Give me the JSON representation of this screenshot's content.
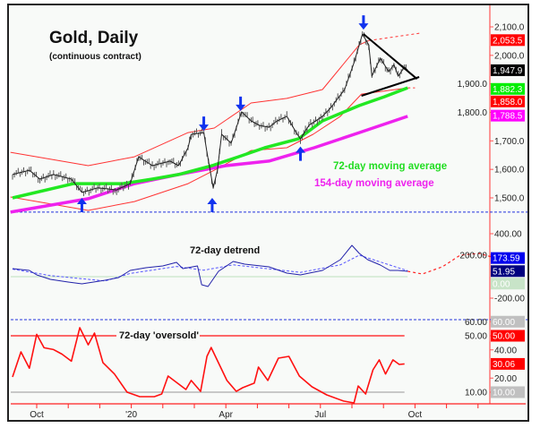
{
  "chart_data": {
    "type": "line",
    "title": "Gold, Daily",
    "subtitle": "(continuous contract)",
    "colors": {
      "price": "#333333",
      "ma72": "#22e822",
      "ma154": "#ee22ee",
      "band": "#ff3333",
      "detrend": "#2222aa",
      "detrend_avg": "#5555ff",
      "projection": "#ff2222",
      "oversold": "#ff1111",
      "arrow": "#1133ee",
      "triangle": "#000000"
    },
    "x_ticks": [
      {
        "date": "2019-10-01",
        "label": "Oct"
      },
      {
        "date": "2019-11-01",
        "label": ""
      },
      {
        "date": "2019-12-01",
        "label": ""
      },
      {
        "date": "2020-01-01",
        "label": "'20"
      },
      {
        "date": "2020-02-01",
        "label": ""
      },
      {
        "date": "2020-03-01",
        "label": ""
      },
      {
        "date": "2020-04-01",
        "label": "Apr"
      },
      {
        "date": "2020-05-01",
        "label": ""
      },
      {
        "date": "2020-06-01",
        "label": ""
      },
      {
        "date": "2020-07-01",
        "label": "Jul"
      },
      {
        "date": "2020-08-01",
        "label": ""
      },
      {
        "date": "2020-09-01",
        "label": ""
      },
      {
        "date": "2020-10-01",
        "label": "Oct"
      },
      {
        "date": "2020-11-01",
        "label": ""
      },
      {
        "date": "2020-12-01",
        "label": ""
      }
    ],
    "price_panel": {
      "ylim": [
        1450,
        2150
      ],
      "y_ticks": [
        "2,100.0",
        "2,000.0",
        "1,900.0",
        "1,800.0",
        "1,700.0",
        "1,600.0",
        "1,500.0"
      ],
      "y_tick_values": [
        2100,
        2000,
        1900,
        1800,
        1700,
        1600,
        1500
      ],
      "value_boxes": [
        {
          "label": "2,053.5",
          "value": 2053.5,
          "color": "#ff0000"
        },
        {
          "label": "1,947.9",
          "value": 1947.9,
          "color": "#000000"
        },
        {
          "label": "1,882.3",
          "value": 1882.3,
          "color": "#00ee00"
        },
        {
          "label": "1,858.0",
          "value": 1858.0,
          "color": "#ff0000"
        },
        {
          "label": "1,788.5",
          "value": 1788.5,
          "color": "#ff00ff"
        }
      ],
      "price": {
        "name": "Gold",
        "dates": [
          "2019-09-08",
          "2019-09-24",
          "2019-10-04",
          "2019-10-17",
          "2019-11-04",
          "2019-11-14",
          "2019-11-29",
          "2019-12-17",
          "2019-12-30",
          "2020-01-08",
          "2020-01-21",
          "2020-02-08",
          "2020-02-16",
          "2020-02-25",
          "2020-02-28",
          "2020-03-10",
          "2020-03-13",
          "2020-03-19",
          "2020-03-23",
          "2020-03-27",
          "2020-04-06",
          "2020-04-16",
          "2020-04-25",
          "2020-05-03",
          "2020-05-12",
          "2020-05-20",
          "2020-05-29",
          "2020-06-08",
          "2020-06-12",
          "2020-06-20",
          "2020-07-03",
          "2020-07-11",
          "2020-07-24",
          "2020-08-03",
          "2020-08-11",
          "2020-08-17",
          "2020-08-20",
          "2020-08-28",
          "2020-09-06",
          "2020-09-11",
          "2020-09-15",
          "2020-09-21",
          "2020-09-24"
        ],
        "values": [
          1582,
          1597,
          1566,
          1582,
          1566,
          1519,
          1535,
          1528,
          1550,
          1644,
          1613,
          1629,
          1613,
          1676,
          1723,
          1729,
          1660,
          1535,
          1597,
          1723,
          1692,
          1802,
          1770,
          1754,
          1748,
          1770,
          1786,
          1729,
          1707,
          1754,
          1786,
          1817,
          1880,
          1974,
          2075,
          2037,
          1927,
          1990,
          1943,
          1968,
          1927,
          1959,
          1948
        ]
      },
      "ma72": {
        "name": "72-day moving average",
        "dates": [
          "2019-09-08",
          "2019-11-06",
          "2019-12-23",
          "2020-01-21",
          "2020-02-16",
          "2020-03-18",
          "2020-04-13",
          "2020-05-08",
          "2020-06-10",
          "2020-07-03",
          "2020-08-08",
          "2020-09-02",
          "2020-09-24"
        ],
        "values": [
          1500,
          1550,
          1550,
          1566,
          1582,
          1613,
          1644,
          1676,
          1707,
          1770,
          1824,
          1855,
          1886
        ]
      },
      "ma154": {
        "name": "154-day moving average",
        "dates": [
          "2019-09-06",
          "2019-11-20",
          "2020-01-04",
          "2020-02-16",
          "2020-04-01",
          "2020-05-12",
          "2020-06-25",
          "2020-08-08",
          "2020-09-24"
        ],
        "values": [
          1450,
          1497,
          1550,
          1582,
          1613,
          1629,
          1676,
          1729,
          1786
        ]
      },
      "upper_band": {
        "dates": [
          "2019-09-06",
          "2019-11-20",
          "2020-01-04",
          "2020-02-25",
          "2020-03-20",
          "2020-04-25",
          "2020-05-29",
          "2020-07-03",
          "2020-08-08",
          "2020-08-17"
        ],
        "values": [
          1660,
          1613,
          1644,
          1729,
          1745,
          1833,
          1849,
          1880,
          2037,
          2052
        ]
      },
      "upper_band_projection": {
        "dates": [
          "2020-08-17",
          "2020-10-06"
        ],
        "values": [
          2052,
          2078
        ]
      },
      "lower_band": {
        "dates": [
          "2019-09-06",
          "2019-11-20",
          "2020-01-04",
          "2020-02-25",
          "2020-03-20",
          "2020-04-25",
          "2020-05-29",
          "2020-06-24",
          "2020-07-20",
          "2020-08-10",
          "2020-09-24"
        ],
        "values": [
          1503,
          1456,
          1487,
          1550,
          1597,
          1666,
          1676,
          1723,
          1786,
          1864,
          1886
        ]
      },
      "lower_band_projection": {
        "dates": [
          "2020-09-24",
          "2020-10-01"
        ],
        "values": [
          1886,
          1886
        ]
      },
      "baseline_value": 1450,
      "arrows": [
        {
          "date": "2020-03-10",
          "value": 1735,
          "direction": "down"
        },
        {
          "date": "2020-04-15",
          "value": 1805,
          "direction": "down"
        },
        {
          "date": "2020-08-12",
          "value": 2090,
          "direction": "down"
        },
        {
          "date": "2019-11-14",
          "value": 1500,
          "direction": "up"
        },
        {
          "date": "2020-03-18",
          "value": 1500,
          "direction": "up"
        },
        {
          "date": "2020-06-12",
          "value": 1680,
          "direction": "up"
        }
      ],
      "triangle": [
        {
          "dates": [
            "2020-08-12",
            "2020-10-03"
          ],
          "values": [
            2075,
            1917
          ]
        },
        {
          "dates": [
            "2020-08-10",
            "2020-10-05"
          ],
          "values": [
            1858,
            1924
          ]
        }
      ],
      "annotations": [
        "72-day moving average",
        "154-day moving average"
      ]
    },
    "detrend_panel": {
      "title": "72-day detrend",
      "y_ticks": [
        "400.00",
        "200.00",
        "-200.00"
      ],
      "y_tick_values": [
        400,
        200,
        -200
      ],
      "value_boxes": [
        {
          "label": "173.59",
          "value": 173.59,
          "color": "#0000ee"
        },
        {
          "label": "51.95",
          "value": 51.95,
          "color": "#000080"
        },
        {
          "label": "0.00",
          "value": 0,
          "color": "#c8e4c8"
        }
      ],
      "detrend": {
        "dates": [
          "2019-09-08",
          "2019-09-24",
          "2019-10-01",
          "2019-10-14",
          "2019-11-01",
          "2019-11-14",
          "2019-12-06",
          "2019-12-19",
          "2019-12-30",
          "2020-01-15",
          "2020-02-01",
          "2020-02-14",
          "2020-02-20",
          "2020-03-04",
          "2020-03-08",
          "2020-03-14",
          "2020-03-24",
          "2020-04-08",
          "2020-04-19",
          "2020-05-12",
          "2020-05-29",
          "2020-06-12",
          "2020-07-03",
          "2020-07-20",
          "2020-08-01",
          "2020-08-08",
          "2020-08-16",
          "2020-08-28",
          "2020-09-07",
          "2020-09-15",
          "2020-09-24"
        ],
        "values": [
          75,
          58,
          17,
          -25,
          -50,
          -67,
          -33,
          -8,
          58,
          83,
          100,
          133,
          75,
          100,
          -75,
          -92,
          50,
          142,
          117,
          92,
          33,
          17,
          58,
          158,
          292,
          217,
          158,
          108,
          58,
          58,
          50
        ]
      },
      "detrend_avg": {
        "dates": [
          "2019-09-08",
          "2019-10-14",
          "2019-12-06",
          "2019-12-30",
          "2020-02-14",
          "2020-03-10",
          "2020-04-08",
          "2020-06-12",
          "2020-07-20",
          "2020-08-08",
          "2020-09-24"
        ],
        "values": [
          70,
          10,
          -40,
          30,
          95,
          60,
          110,
          40,
          110,
          200,
          55
        ]
      },
      "projection": {
        "dates": [
          "2020-09-24",
          "2020-10-08",
          "2020-10-27",
          "2020-11-14",
          "2020-12-02",
          "2020-12-14"
        ],
        "values": [
          50,
          25,
          92,
          200,
          217,
          183
        ]
      }
    },
    "oversold_panel": {
      "title": "72-day 'oversold'",
      "y_ticks": [
        "60.00",
        "50.00",
        "40.00",
        "20.00",
        "10.00"
      ],
      "y_tick_values": [
        60,
        50,
        40,
        20,
        10
      ],
      "value_boxes": [
        {
          "label": "60.00",
          "value": 60,
          "color": "#c0c0c0"
        },
        {
          "label": "50.00",
          "value": 50,
          "color": "#ff0000"
        },
        {
          "label": "30.06",
          "value": 30.06,
          "color": "#ff0000"
        },
        {
          "label": "10.00",
          "value": 10,
          "color": "#c0c0c0"
        }
      ],
      "oversold": {
        "dates": [
          "2019-09-08",
          "2019-09-16",
          "2019-09-24",
          "2019-10-01",
          "2019-10-08",
          "2019-10-17",
          "2019-10-25",
          "2019-11-04",
          "2019-11-12",
          "2019-11-20",
          "2019-11-26",
          "2019-12-04",
          "2019-12-15",
          "2019-12-27",
          "2020-01-09",
          "2020-01-23",
          "2020-01-30",
          "2020-02-06",
          "2020-02-23",
          "2020-02-28",
          "2020-03-07",
          "2020-03-13",
          "2020-03-17",
          "2020-04-02",
          "2020-04-11",
          "2020-04-17",
          "2020-04-28",
          "2020-05-02",
          "2020-05-11",
          "2020-05-21",
          "2020-05-31",
          "2020-06-11",
          "2020-06-23",
          "2020-07-07",
          "2020-07-23",
          "2020-08-03",
          "2020-08-07",
          "2020-08-14",
          "2020-08-21",
          "2020-08-27",
          "2020-09-03",
          "2020-09-10",
          "2020-09-16",
          "2020-09-21"
        ],
        "values": [
          20.8,
          38.6,
          27,
          51,
          41.5,
          40.2,
          37,
          32,
          55.7,
          43.6,
          51.9,
          31,
          22.9,
          10,
          6.8,
          6.8,
          8.7,
          21.4,
          11.9,
          18.3,
          10.6,
          35.4,
          41.7,
          18.3,
          10.6,
          13.2,
          16.4,
          27.8,
          18.3,
          34.1,
          35.4,
          21.4,
          13.8,
          8.1,
          3.7,
          2.4,
          14.4,
          8.7,
          25.9,
          32.9,
          22.9,
          32.9,
          29.7,
          30.06
        ]
      }
    }
  }
}
